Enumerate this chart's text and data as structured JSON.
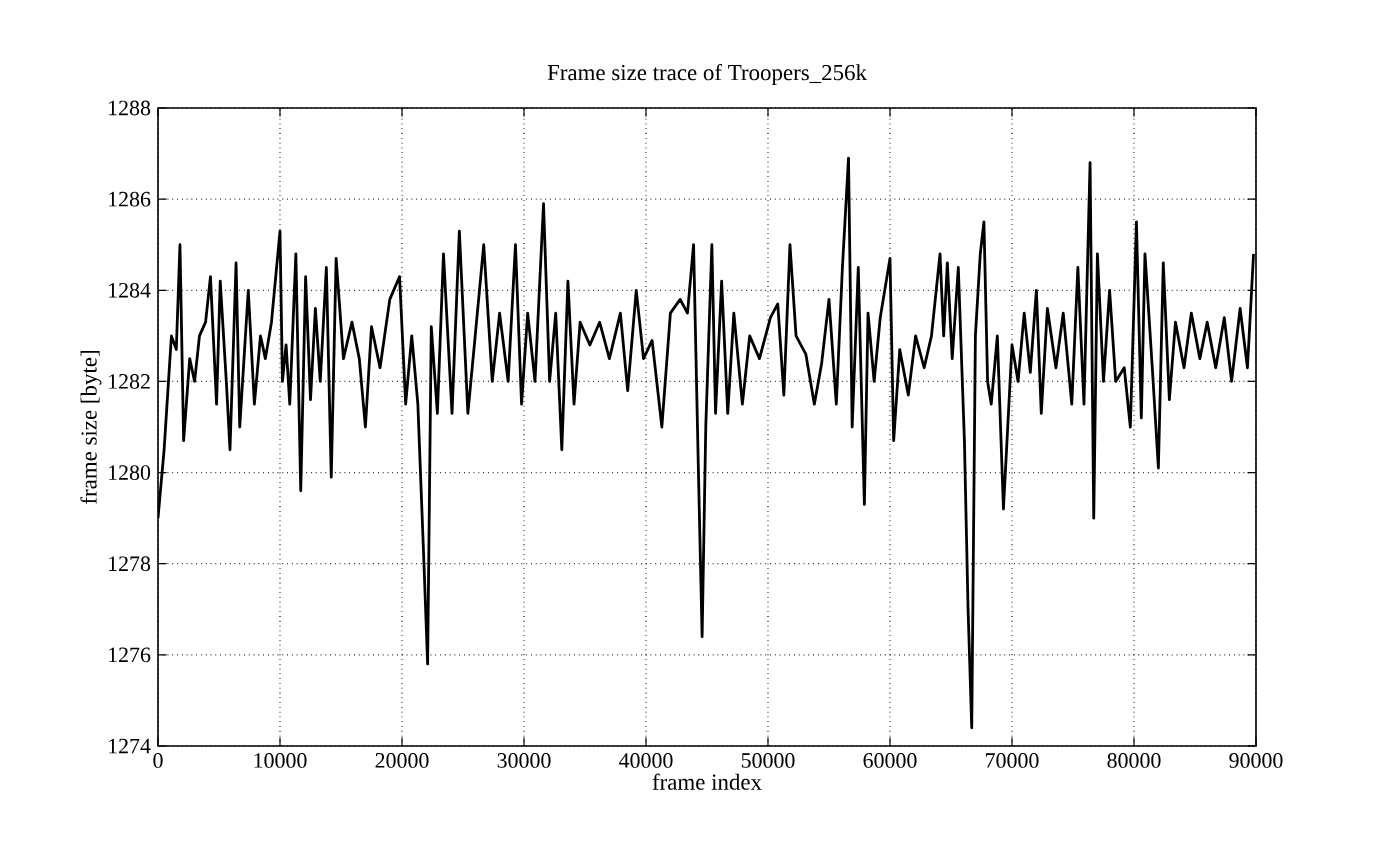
{
  "chart_data": {
    "type": "line",
    "title": "Frame size trace of Troopers_256k",
    "xlabel": "frame index",
    "ylabel": "frame size [byte]",
    "xlim": [
      0,
      90000
    ],
    "ylim": [
      1274,
      1288
    ],
    "xticks": [
      0,
      10000,
      20000,
      30000,
      40000,
      50000,
      60000,
      70000,
      80000,
      90000
    ],
    "yticks": [
      1274,
      1276,
      1278,
      1280,
      1282,
      1284,
      1286,
      1288
    ],
    "grid": true,
    "marker": "none",
    "line_style": "solid",
    "series": [
      {
        "color": "#000000",
        "x": [
          0,
          500,
          1100,
          1500,
          1800,
          2100,
          2600,
          3000,
          3400,
          3900,
          4300,
          4800,
          5100,
          5600,
          5900,
          6400,
          6700,
          7400,
          7900,
          8400,
          8800,
          9300,
          10000,
          10200,
          10500,
          10800,
          11300,
          11700,
          12100,
          12500,
          12900,
          13300,
          13800,
          14200,
          14600,
          15200,
          15900,
          16500,
          17000,
          17500,
          18200,
          19000,
          19800,
          20300,
          20800,
          21300,
          21800,
          22100,
          22400,
          22900,
          23400,
          24100,
          24700,
          25400,
          26000,
          26700,
          27400,
          28000,
          28700,
          29300,
          29800,
          30300,
          30900,
          31600,
          32100,
          32600,
          33100,
          33600,
          34100,
          34600,
          35400,
          36200,
          37000,
          37900,
          38500,
          39200,
          39800,
          40500,
          41300,
          42000,
          42800,
          43400,
          43900,
          44300,
          44600,
          44900,
          45400,
          45700,
          46200,
          46700,
          47200,
          47900,
          48500,
          49300,
          50200,
          50800,
          51300,
          51800,
          52300,
          53100,
          53800,
          54400,
          55000,
          55600,
          56100,
          56600,
          56900,
          57400,
          57900,
          58200,
          58700,
          59200,
          60000,
          60300,
          60800,
          61500,
          62100,
          62800,
          63400,
          64100,
          64400,
          64700,
          65100,
          65600,
          66100,
          66400,
          66700,
          67000,
          67400,
          67700,
          68000,
          68300,
          68800,
          69300,
          70000,
          70500,
          71000,
          71500,
          72000,
          72400,
          72900,
          73600,
          74200,
          74900,
          75400,
          75900,
          76400,
          76700,
          77000,
          77500,
          78000,
          78500,
          79200,
          79700,
          80200,
          80600,
          80900,
          81500,
          82000,
          82400,
          82900,
          83400,
          84100,
          84700,
          85400,
          86000,
          86700,
          87400,
          88000,
          88700,
          89300,
          89800
        ],
        "values": [
          1279,
          1280.5,
          1283,
          1282.7,
          1285,
          1280.7,
          1282.5,
          1282,
          1283,
          1283.3,
          1284.3,
          1281.5,
          1284.2,
          1282,
          1280.5,
          1284.6,
          1281,
          1284,
          1281.5,
          1283,
          1282.5,
          1283.3,
          1285.3,
          1282,
          1282.8,
          1281.5,
          1284.8,
          1279.6,
          1284.3,
          1281.6,
          1283.6,
          1282,
          1284.5,
          1279.9,
          1284.7,
          1282.5,
          1283.3,
          1282.5,
          1281,
          1283.2,
          1282.3,
          1283.8,
          1284.3,
          1281.5,
          1283,
          1281.5,
          1278,
          1275.8,
          1283.2,
          1281.3,
          1284.8,
          1281.3,
          1285.3,
          1281.3,
          1283,
          1285,
          1282,
          1283.5,
          1282,
          1285,
          1281.5,
          1283.5,
          1282,
          1285.9,
          1282,
          1283.5,
          1280.5,
          1284.2,
          1281.5,
          1283.3,
          1282.8,
          1283.3,
          1282.5,
          1283.5,
          1281.8,
          1284,
          1282.5,
          1282.9,
          1281,
          1283.5,
          1283.8,
          1283.5,
          1285,
          1280,
          1276.4,
          1281,
          1285,
          1281.3,
          1284.2,
          1281.3,
          1283.5,
          1281.5,
          1283,
          1282.5,
          1283.4,
          1283.7,
          1281.7,
          1285,
          1283,
          1282.6,
          1281.5,
          1282.4,
          1283.8,
          1281.5,
          1284.5,
          1286.9,
          1281,
          1284.5,
          1279.3,
          1283.5,
          1282,
          1283.4,
          1284.7,
          1280.7,
          1282.7,
          1281.7,
          1283,
          1282.3,
          1283,
          1284.8,
          1283,
          1284.6,
          1282.5,
          1284.5,
          1280.7,
          1277,
          1274.4,
          1283,
          1284.8,
          1285.5,
          1282,
          1281.5,
          1283,
          1279.2,
          1282.8,
          1282,
          1283.5,
          1282.2,
          1284,
          1281.3,
          1283.6,
          1282.3,
          1283.5,
          1281.5,
          1284.5,
          1281.5,
          1286.8,
          1279,
          1284.8,
          1282,
          1284,
          1282,
          1282.3,
          1281,
          1285.5,
          1281.2,
          1284.8,
          1282.3,
          1280.1,
          1284.6,
          1281.6,
          1283.3,
          1282.3,
          1283.5,
          1282.5,
          1283.3,
          1282.3,
          1283.4,
          1282,
          1283.6,
          1282.3,
          1284.8
        ]
      }
    ]
  }
}
